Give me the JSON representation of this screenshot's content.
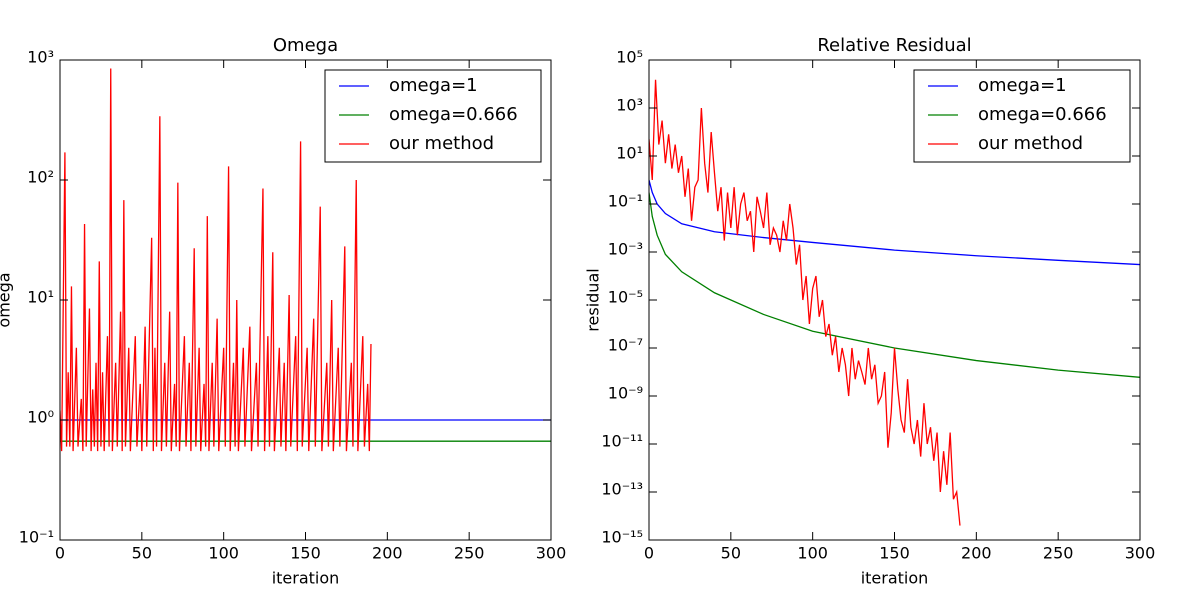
{
  "chart_data": [
    {
      "type": "line",
      "title": "Omega",
      "xlabel": "iteration",
      "ylabel": "omega",
      "log_y": true,
      "legend": "upper right",
      "xlim": [
        0,
        300
      ],
      "xticks": [
        0,
        50,
        100,
        150,
        200,
        250,
        300
      ],
      "ylim": [
        0.1,
        1000
      ],
      "yticks": [
        {
          "value": 0.1,
          "label": "10⁻¹"
        },
        {
          "value": 1,
          "label": "10⁰"
        },
        {
          "value": 10,
          "label": "10¹"
        },
        {
          "value": 100,
          "label": "10²"
        },
        {
          "value": 1000,
          "label": "10³"
        }
      ],
      "series": [
        {
          "name": "omega=1",
          "color": "#0000ff",
          "x": [
            0,
            300
          ],
          "values": [
            1,
            1
          ]
        },
        {
          "name": "omega=0.666",
          "color": "#008000",
          "x": [
            0,
            300
          ],
          "values": [
            0.666,
            0.666
          ]
        },
        {
          "name": "our method",
          "color": "#ff0000",
          "x": [
            0,
            1,
            3,
            4,
            5,
            6,
            7,
            8,
            10,
            11,
            13,
            14,
            15,
            16,
            18,
            19,
            20,
            21,
            22,
            23,
            24,
            25,
            26,
            27,
            29,
            30,
            31,
            32,
            34,
            35,
            37,
            38,
            39,
            40,
            42,
            43,
            46,
            47,
            49,
            50,
            52,
            53,
            56,
            57,
            58,
            59,
            61,
            62,
            64,
            65,
            67,
            68,
            70,
            71,
            72,
            73,
            76,
            77,
            79,
            80,
            82,
            83,
            85,
            86,
            88,
            89,
            90,
            91,
            93,
            94,
            96,
            97,
            100,
            101,
            103,
            104,
            106,
            107,
            108,
            109,
            112,
            113,
            116,
            117,
            120,
            121,
            124,
            125,
            127,
            128,
            130,
            131,
            134,
            135,
            137,
            138,
            140,
            141,
            144,
            145,
            147,
            148,
            151,
            152,
            155,
            156,
            159,
            160,
            163,
            164,
            166,
            167,
            170,
            171,
            174,
            175,
            178,
            179,
            181,
            182,
            185,
            186,
            188,
            189,
            190
          ],
          "values": [
            1.2,
            0.55,
            170,
            0.6,
            2.5,
            0.6,
            13,
            0.55,
            4,
            0.6,
            1.5,
            0.55,
            43,
            0.6,
            8.5,
            0.55,
            1.8,
            0.6,
            3,
            0.55,
            21,
            0.6,
            2.5,
            0.55,
            5,
            0.6,
            850,
            0.55,
            3,
            0.6,
            8,
            0.55,
            68,
            0.6,
            4,
            0.55,
            5,
            0.6,
            2,
            0.55,
            6,
            0.6,
            33,
            0.55,
            4,
            0.6,
            340,
            0.55,
            3,
            0.6,
            8,
            0.55,
            2,
            0.6,
            95,
            0.55,
            5,
            0.6,
            3,
            0.55,
            27,
            0.6,
            4,
            0.55,
            2,
            0.6,
            50,
            0.55,
            3,
            0.6,
            7,
            0.55,
            4,
            0.6,
            130,
            0.55,
            3,
            0.6,
            10,
            0.55,
            4,
            0.6,
            6,
            0.55,
            3,
            0.6,
            85,
            0.55,
            5,
            0.6,
            25,
            0.55,
            4,
            0.6,
            3,
            0.55,
            11,
            0.6,
            5,
            0.55,
            210,
            0.6,
            4,
            0.55,
            7,
            0.6,
            60,
            0.55,
            3,
            0.6,
            10,
            0.55,
            4,
            0.6,
            28,
            0.55,
            3,
            0.6,
            100,
            0.55,
            5,
            0.6,
            2,
            0.55,
            4.3
          ]
        }
      ]
    },
    {
      "type": "line",
      "title": "Relative Residual",
      "xlabel": "iteration",
      "ylabel": "residual",
      "log_y": true,
      "legend": "upper right",
      "xlim": [
        0,
        300
      ],
      "xticks": [
        0,
        50,
        100,
        150,
        200,
        250,
        300
      ],
      "ylim": [
        1e-15,
        100000
      ],
      "yticks": [
        {
          "value": 1e-15,
          "label": "10⁻¹⁵"
        },
        {
          "value": 1e-13,
          "label": "10⁻¹³"
        },
        {
          "value": 1e-11,
          "label": "10⁻¹¹"
        },
        {
          "value": 1e-09,
          "label": "10⁻⁹"
        },
        {
          "value": 1e-07,
          "label": "10⁻⁷"
        },
        {
          "value": 1e-05,
          "label": "10⁻⁵"
        },
        {
          "value": 0.001,
          "label": "10⁻³"
        },
        {
          "value": 0.1,
          "label": "10⁻¹"
        },
        {
          "value": 10,
          "label": "10¹"
        },
        {
          "value": 1000,
          "label": "10³"
        },
        {
          "value": 100000,
          "label": "10⁵"
        }
      ],
      "series": [
        {
          "name": "omega=1",
          "color": "#0000ff",
          "x": [
            0,
            2,
            5,
            10,
            20,
            40,
            70,
            100,
            150,
            200,
            250,
            300
          ],
          "values": [
            1,
            0.3,
            0.1,
            0.04,
            0.015,
            0.007,
            0.004,
            0.0025,
            0.0012,
            0.0007,
            0.00045,
            0.0003
          ]
        },
        {
          "name": "omega=0.666",
          "color": "#008000",
          "x": [
            0,
            2,
            5,
            10,
            20,
            40,
            70,
            100,
            150,
            200,
            250,
            300
          ],
          "values": [
            0.3,
            0.03,
            0.005,
            0.0008,
            0.00015,
            2e-05,
            2.5e-06,
            5e-07,
            1e-07,
            3e-08,
            1.2e-08,
            6e-09
          ]
        },
        {
          "name": "our method",
          "color": "#ff0000",
          "x": [
            0,
            2,
            4,
            6,
            8,
            10,
            12,
            14,
            16,
            18,
            20,
            22,
            24,
            26,
            28,
            30,
            32,
            34,
            36,
            38,
            40,
            42,
            44,
            46,
            48,
            50,
            52,
            54,
            56,
            58,
            60,
            62,
            64,
            66,
            68,
            70,
            72,
            74,
            76,
            78,
            80,
            82,
            84,
            86,
            88,
            90,
            92,
            94,
            96,
            98,
            100,
            102,
            104,
            106,
            108,
            110,
            112,
            114,
            116,
            118,
            120,
            122,
            124,
            126,
            128,
            130,
            132,
            134,
            136,
            138,
            140,
            142,
            144,
            146,
            148,
            150,
            152,
            154,
            156,
            158,
            160,
            162,
            164,
            166,
            168,
            170,
            172,
            174,
            176,
            178,
            180,
            182,
            184,
            186,
            188,
            190
          ],
          "values": [
            50,
            1,
            15000,
            30,
            300,
            5,
            80,
            3,
            30,
            2,
            10,
            0.2,
            3,
            0.02,
            0.5,
            1,
            1000,
            5,
            0.3,
            100,
            2,
            0.05,
            0.5,
            0.003,
            0.3,
            0.01,
            0.5,
            0.005,
            0.1,
            0.3,
            0.02,
            0.05,
            0.001,
            0.2,
            0.05,
            0.01,
            0.3,
            0.002,
            0.01,
            0.005,
            0.001,
            0.02,
            0.003,
            0.1,
            0.01,
            0.0003,
            0.002,
            1e-05,
            0.0001,
            1e-06,
            3e-05,
            0.0001,
            2e-06,
            1e-05,
            3e-07,
            1e-06,
            5e-08,
            3e-07,
            1e-08,
            1e-07,
            2e-08,
            1e-09,
            1e-07,
            5e-09,
            3e-08,
            1e-08,
            3e-09,
            1e-07,
            5e-09,
            2e-08,
            5e-10,
            1e-09,
            1e-08,
            7e-12,
            2e-10,
            1e-07,
            2e-09,
            1e-10,
            3e-11,
            5e-09,
            5e-11,
            1e-11,
            1e-10,
            3e-12,
            5e-10,
            1e-11,
            5e-11,
            2e-12,
            3e-11,
            1e-13,
            5e-12,
            2e-13,
            3e-11,
            5e-14,
            1e-13,
            4e-15
          ]
        }
      ]
    }
  ]
}
